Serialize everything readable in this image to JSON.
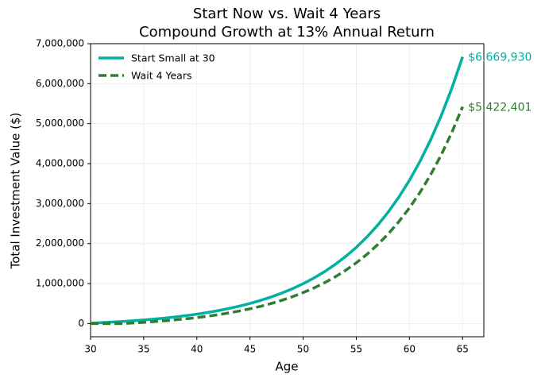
{
  "chart_data": {
    "type": "line",
    "title": "Start Now vs. Wait 4 Years",
    "subtitle": "Compound Growth at 13% Annual Return",
    "x_label": "Age",
    "y_label": "Total Investment Value ($)",
    "x": [
      30,
      31,
      32,
      33,
      34,
      35,
      36,
      37,
      38,
      39,
      40,
      41,
      42,
      43,
      44,
      45,
      46,
      47,
      48,
      49,
      50,
      51,
      52,
      53,
      54,
      55,
      56,
      57,
      58,
      59,
      60,
      61,
      62,
      63,
      64,
      65
    ],
    "series": [
      {
        "name": "Start Small at 30",
        "color": "#00b0a0",
        "linestyle": "solid",
        "values": [
          10780,
          22961,
          36726,
          52282,
          69853,
          89721,
          112159,
          137516,
          166174,
          198564,
          235157,
          276500,
          323226,
          376030,
          435692,
          503107,
          579295,
          665383,
          762657,
          872586,
          996803,
          1137162,
          1295774,
          1475009,
          1677536,
          1906398,
          2165011,
          2457240,
          2787461,
          3160611,
          3582270,
          4058737,
          4597178,
          5205578,
          5893092,
          6669930
        ],
        "value_labels": [
          null,
          null,
          null,
          null,
          null,
          null,
          null,
          null,
          null,
          null,
          null,
          null,
          null,
          null,
          null,
          null,
          null,
          null,
          null,
          null,
          null,
          null,
          null,
          null,
          null,
          null,
          null,
          null,
          null,
          null,
          null,
          null,
          null,
          null,
          null,
          "$6,669,930"
        ]
      },
      {
        "name": "Wait 4 Years",
        "color": "#2e7d32",
        "linestyle": "dashed",
        "values": [
          0,
          0,
          0,
          0,
          14402,
          30675,
          49065,
          69847,
          93322,
          119865,
          149842,
          183719,
          222005,
          265276,
          314164,
          369399,
          431824,
          502370,
          582077,
          672142,
          773927,
          888940,
          1018897,
          1165759,
          1331710,
          1519229,
          1731131,
          1970574,
          2241156,
          2546907,
          2892413,
          3282837,
          3723993,
          4222524,
          4785849,
          5422401
        ],
        "value_labels": [
          null,
          null,
          null,
          null,
          null,
          null,
          null,
          null,
          null,
          null,
          null,
          null,
          null,
          null,
          null,
          null,
          null,
          null,
          null,
          null,
          null,
          null,
          null,
          null,
          null,
          null,
          null,
          null,
          null,
          null,
          null,
          null,
          null,
          null,
          null,
          "$5,422,401"
        ]
      }
    ],
    "xlim": [
      30,
      67
    ],
    "ylim": [
      -330000,
      7000000
    ],
    "xticks": [
      30,
      35,
      40,
      45,
      50,
      55,
      60,
      65
    ],
    "yticks": [
      {
        "value": 0,
        "label": "0"
      },
      {
        "value": 1000000,
        "label": "1,000,000"
      },
      {
        "value": 2000000,
        "label": "2,000,000"
      },
      {
        "value": 3000000,
        "label": "3,000,000"
      },
      {
        "value": 4000000,
        "label": "4,000,000"
      },
      {
        "value": 5000000,
        "label": "5,000,000"
      },
      {
        "value": 6000000,
        "label": "6,000,000"
      },
      {
        "value": 7000000,
        "label": "7,000,000"
      }
    ],
    "grid": true,
    "legend": "upper left"
  }
}
